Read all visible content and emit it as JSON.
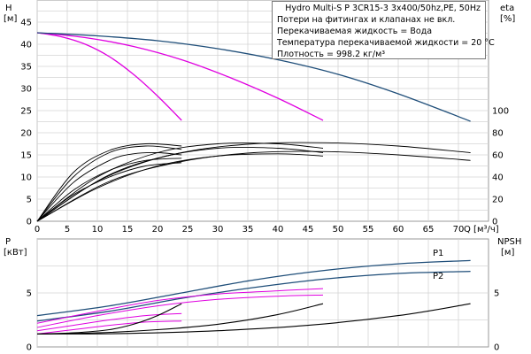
{
  "chart_data": [
    {
      "id": "head",
      "type": "line",
      "title": "Hydro Multi-S P 3CR15-3 3x400/50hz,PE, 50Hz",
      "notes": [
        "Потери на фитингах и клапанах не вкл.",
        "Перекачиваемая жидкость = Вода",
        "Температура перекачиваемой жидкости = 20 °C",
        "Плотность = 998.2 кг/м³"
      ],
      "xlabel": "Q [м³/ч]",
      "ylabel": "H",
      "ylabel_unit": "[м]",
      "y2label": "eta",
      "y2label_unit": "[%]",
      "xlim": [
        0,
        75
      ],
      "ylim": [
        0,
        50
      ],
      "y2lim": [
        0,
        200
      ],
      "xticks": [
        0,
        5,
        10,
        15,
        20,
        25,
        30,
        35,
        40,
        45,
        50,
        55,
        60,
        65,
        70
      ],
      "yticks": [
        0,
        5,
        10,
        15,
        20,
        25,
        30,
        35,
        40,
        45
      ],
      "y2ticks": [
        0,
        20,
        40,
        60,
        80,
        100
      ],
      "grid": true,
      "series": [
        {
          "color": "#e000e0",
          "x": [
            0,
            4,
            8,
            12,
            16,
            20,
            24
          ],
          "y": [
            42.6,
            41.7,
            40.0,
            37.2,
            33.2,
            28.3,
            22.8
          ]
        },
        {
          "color": "#e000e0",
          "x": [
            0,
            8,
            16,
            24,
            32,
            40,
            47.5
          ],
          "y": [
            42.6,
            41.5,
            39.5,
            36.5,
            32.5,
            27.8,
            22.8
          ]
        },
        {
          "color": "#1f4e79",
          "x": [
            0,
            10,
            20,
            30,
            40,
            50,
            60,
            72
          ],
          "y": [
            42.6,
            41.9,
            40.8,
            39.0,
            36.5,
            33.2,
            28.8,
            22.6
          ]
        }
      ],
      "efficiency_series": [
        {
          "color": "#000000",
          "x": [
            0,
            6,
            12,
            16,
            20,
            24
          ],
          "y": [
            0,
            35,
            55,
            61,
            62,
            60
          ]
        },
        {
          "color": "#000000",
          "x": [
            0,
            6,
            12,
            18,
            24
          ],
          "y": [
            0,
            40,
            62,
            68,
            65
          ]
        },
        {
          "color": "#000000",
          "x": [
            0,
            6,
            12,
            18,
            24
          ],
          "y": [
            0,
            44,
            64,
            70,
            68
          ]
        },
        {
          "color": "#000000",
          "x": [
            0,
            6,
            12,
            18,
            24
          ],
          "y": [
            0,
            28,
            46,
            55,
            57
          ]
        },
        {
          "color": "#000000",
          "x": [
            0,
            6,
            12,
            18,
            24
          ],
          "y": [
            0,
            24,
            40,
            50,
            53
          ]
        },
        {
          "color": "#000000",
          "x": [
            0,
            10,
            20,
            30,
            40,
            47.5
          ],
          "y": [
            0,
            36,
            57,
            66,
            66,
            62
          ]
        },
        {
          "color": "#000000",
          "x": [
            0,
            10,
            20,
            30,
            40,
            47.5
          ],
          "y": [
            0,
            40,
            62,
            70,
            70,
            66
          ]
        },
        {
          "color": "#000000",
          "x": [
            0,
            10,
            20,
            30,
            40,
            47.5
          ],
          "y": [
            0,
            30,
            50,
            59,
            61,
            59
          ]
        },
        {
          "color": "#000000",
          "x": [
            0,
            12,
            24,
            36,
            48,
            60,
            72
          ],
          "y": [
            0,
            36,
            54,
            62,
            63,
            60,
            55
          ]
        },
        {
          "color": "#000000",
          "x": [
            0,
            12,
            24,
            36,
            48,
            60,
            72
          ],
          "y": [
            0,
            42,
            62,
            70,
            71,
            68,
            62
          ]
        }
      ]
    },
    {
      "id": "power",
      "type": "line",
      "ylabel": "P",
      "ylabel_unit": "[кВт]",
      "y2label": "NPSH",
      "y2label_unit": "[м]",
      "xlim": [
        0,
        75
      ],
      "ylim": [
        0,
        10
      ],
      "y2lim": [
        0,
        10
      ],
      "yticks": [
        0,
        5
      ],
      "y2ticks": [
        0,
        5
      ],
      "grid": true,
      "labels": [
        "P1",
        "P2"
      ],
      "series": [
        {
          "name": "P1",
          "color": "#1f4e79",
          "x": [
            0,
            12,
            24,
            36,
            48,
            60,
            72
          ],
          "y": [
            2.9,
            3.8,
            5.0,
            6.2,
            7.1,
            7.7,
            8.0
          ]
        },
        {
          "name": "P2",
          "color": "#1f4e79",
          "x": [
            0,
            12,
            24,
            36,
            48,
            60,
            72
          ],
          "y": [
            2.4,
            3.3,
            4.5,
            5.5,
            6.3,
            6.8,
            7.0
          ]
        },
        {
          "color": "#e000e0",
          "x": [
            0,
            10,
            20,
            30,
            40,
            47.5
          ],
          "y": [
            2.2,
            3.3,
            4.3,
            4.9,
            5.2,
            5.4
          ]
        },
        {
          "color": "#e000e0",
          "x": [
            0,
            10,
            20,
            30,
            40,
            47.5
          ],
          "y": [
            1.8,
            2.9,
            3.8,
            4.4,
            4.7,
            4.8
          ]
        },
        {
          "color": "#e000e0",
          "x": [
            0,
            6,
            12,
            18,
            24
          ],
          "y": [
            1.5,
            2.0,
            2.5,
            2.9,
            3.1
          ]
        },
        {
          "color": "#e000e0",
          "x": [
            0,
            6,
            12,
            18,
            24
          ],
          "y": [
            1.2,
            1.6,
            2.0,
            2.3,
            2.4
          ]
        }
      ],
      "npsh_series": [
        {
          "color": "#000000",
          "x": [
            0,
            6,
            12,
            16,
            20,
            24
          ],
          "y": [
            1.2,
            1.3,
            1.6,
            2.1,
            2.9,
            4.0
          ]
        },
        {
          "color": "#000000",
          "x": [
            0,
            10,
            20,
            30,
            40,
            47.5
          ],
          "y": [
            1.2,
            1.3,
            1.6,
            2.1,
            3.0,
            4.0
          ]
        },
        {
          "color": "#000000",
          "x": [
            0,
            15,
            30,
            45,
            60,
            72
          ],
          "y": [
            1.2,
            1.25,
            1.5,
            2.0,
            2.9,
            4.0
          ]
        }
      ]
    }
  ]
}
